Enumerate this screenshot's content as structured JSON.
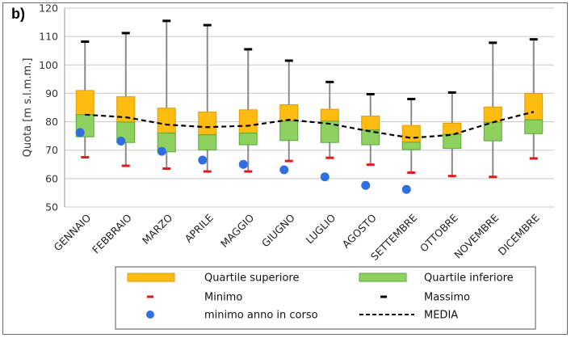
{
  "panel_label": "b)",
  "chart_data": {
    "type": "box",
    "title": "",
    "xlabel": "",
    "ylabel": "Quota [m s.l.m.m.]",
    "ylim": [
      50,
      120
    ],
    "yticks": [
      50,
      60,
      70,
      80,
      90,
      100,
      110,
      120
    ],
    "grid": "horizontal",
    "categories": [
      "GENNAIO",
      "FEBBRAIO",
      "MARZO",
      "APRILE",
      "MAGGIO",
      "GIUGNO",
      "LUGLIO",
      "AGOSTO",
      "SETTEMBRE",
      "OTTOBRE",
      "NOVEMBRE",
      "DICEMBRE"
    ],
    "series": [
      {
        "name": "Massimo",
        "values": [
          108.2,
          111.2,
          115.5,
          114.0,
          105.5,
          101.5,
          94.0,
          89.7,
          88.0,
          90.3,
          107.8,
          109.0
        ]
      },
      {
        "name": "Quartile superiore",
        "values": [
          91.0,
          88.8,
          84.8,
          83.4,
          84.2,
          86.0,
          84.4,
          82.0,
          78.7,
          79.5,
          85.2,
          90.0
        ]
      },
      {
        "name": "MEDIA",
        "values": [
          82.5,
          81.6,
          79.0,
          78.1,
          78.6,
          80.7,
          79.3,
          76.6,
          74.3,
          75.4,
          79.8,
          83.5
        ]
      },
      {
        "name": "Quartile inferiore",
        "values": [
          74.7,
          72.7,
          69.4,
          70.1,
          71.9,
          73.4,
          72.7,
          71.9,
          70.2,
          70.6,
          73.3,
          75.8
        ]
      },
      {
        "name": "Minimo",
        "values": [
          67.5,
          64.5,
          63.5,
          62.5,
          62.5,
          66.2,
          67.3,
          64.9,
          62.1,
          60.9,
          60.6,
          67.1
        ]
      },
      {
        "name": "minimo anno in corso",
        "values": [
          76.2,
          73.2,
          69.6,
          66.5,
          65.0,
          63.1,
          60.6,
          57.6,
          56.2,
          null,
          null,
          null
        ]
      }
    ],
    "median_split": [
      82.5,
      79.9,
      76.0,
      75.4,
      76.0,
      80.2,
      80.2,
      77.1,
      72.8,
      75.6,
      79.8,
      80.7
    ],
    "legend": {
      "placement": "bottom",
      "entries": [
        {
          "label": "Quartile superiore",
          "symbol": "orange-box"
        },
        {
          "label": "Quartile inferiore",
          "symbol": "green-box"
        },
        {
          "label": "Minimo",
          "symbol": "red-dash"
        },
        {
          "label": "Massimo",
          "symbol": "black-dash"
        },
        {
          "label": "minimo anno in corso",
          "symbol": "blue-dot"
        },
        {
          "label": "MEDIA",
          "symbol": "dashed-line"
        }
      ]
    },
    "colors": {
      "upper_quartile": "#fcbc12",
      "upper_quartile_border": "#e39a00",
      "lower_quartile": "#8fd15f",
      "lower_quartile_border": "#58a83a",
      "whisker": "#8a8a8a",
      "minimo": "#e31a1c",
      "massimo": "#000000",
      "current_year_min": "#2f6fe0",
      "media": "#000000",
      "grid": "#c8c8c8"
    }
  }
}
